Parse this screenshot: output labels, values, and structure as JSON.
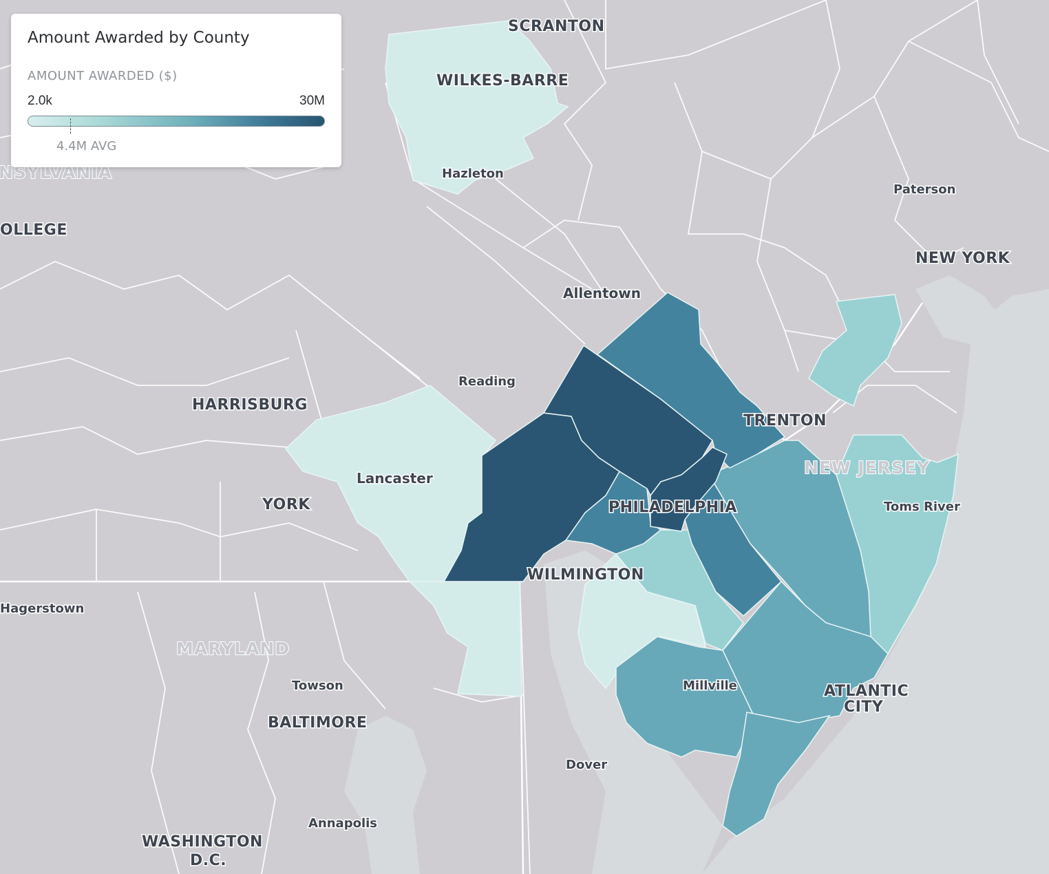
{
  "legend": {
    "title": "Amount Awarded by County",
    "subtitle": "AMOUNT AWARDED ($)",
    "min_label": "2.0k",
    "max_label": "30M",
    "avg_label": "4.4M AVG",
    "color_low": "#d8efed",
    "color_high": "#285570"
  },
  "map": {
    "background_color": "#cfcdd1",
    "water_color": "#d7dadd",
    "county_colors": {
      "lightest": "#d3ecea",
      "light": "#99d1d3",
      "medium": "#67a9b9",
      "dark": "#44839e",
      "darkest": "#2a5673"
    },
    "labels": {
      "scranton": "SCRANTON",
      "wilkes_barre": "WILKES-BARRE",
      "hazleton": "Hazleton",
      "pennsylvania": "NSYLVANIA",
      "state_college": "OLLEGE",
      "paterson": "Paterson",
      "new_york": "NEW YORK",
      "allentown": "Allentown",
      "reading": "Reading",
      "harrisburg": "HARRISBURG",
      "trenton": "TRENTON",
      "new_jersey": "NEW JERSEY",
      "lancaster": "Lancaster",
      "york": "YORK",
      "philadelphia": "PHILADELPHIA",
      "toms_river": "Toms River",
      "wilmington": "WILMINGTON",
      "hagerstown": "Hagerstown",
      "maryland": "MARYLAND",
      "towson": "Towson",
      "millville": "Millville",
      "atlantic": "ATLANTIC",
      "city": "CITY",
      "baltimore": "BALTIMORE",
      "dover": "Dover",
      "annapolis": "Annapolis",
      "washington": "WASHINGTON",
      "dc": "D.C."
    }
  }
}
